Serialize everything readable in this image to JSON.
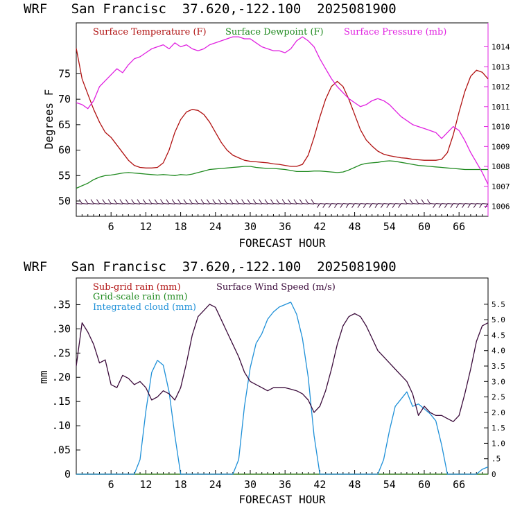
{
  "colors": {
    "temperature": "#b01010",
    "dewpoint": "#1f8a1f",
    "pressure": "#e020e0",
    "wind": "#3a0a3a",
    "cloud": "#1e90d8",
    "subgrid": "#b01010",
    "gridscale": "#1f8a1f"
  },
  "chart_data": [
    {
      "type": "line",
      "title": "WRF   San Francisc  37.620,-122.100  2025081900",
      "xlabel": "FORECAST HOUR",
      "ylabel": "Degrees F",
      "xlim": [
        0,
        71
      ],
      "ylim": [
        47,
        85
      ],
      "y2lim": [
        1005.5,
        1015.2
      ],
      "x_ticks": [
        6,
        12,
        18,
        24,
        30,
        36,
        42,
        48,
        54,
        60,
        66
      ],
      "y_ticks": [
        50,
        55,
        60,
        65,
        70,
        75
      ],
      "y2_ticks": [
        1006,
        1007,
        1008,
        1009,
        1010,
        1011,
        1012,
        1013,
        1014
      ],
      "legend": [
        "Surface Temperature (F)",
        "Surface Dewpoint (F)",
        "Surface Pressure (mb)"
      ],
      "series": [
        {
          "name": "Surface Temperature (F)",
          "axis": "left",
          "x": [
            0,
            1,
            2,
            3,
            4,
            5,
            6,
            7,
            8,
            9,
            10,
            11,
            12,
            13,
            14,
            15,
            16,
            17,
            18,
            19,
            20,
            21,
            22,
            23,
            24,
            25,
            26,
            27,
            28,
            29,
            30,
            31,
            32,
            33,
            34,
            35,
            36,
            37,
            38,
            39,
            40,
            41,
            42,
            43,
            44,
            45,
            46,
            47,
            48,
            49,
            50,
            51,
            52,
            53,
            54,
            55,
            56,
            57,
            58,
            59,
            60,
            61,
            62,
            63,
            64,
            65,
            66,
            67,
            68,
            69,
            70,
            71
          ],
          "values": [
            80,
            74,
            71,
            68,
            65.5,
            63.5,
            62.5,
            61,
            59.5,
            58,
            57,
            56.6,
            56.5,
            56.5,
            56.6,
            57.5,
            60,
            63.5,
            66,
            67.5,
            68,
            67.8,
            67,
            65.5,
            63.5,
            61.5,
            60,
            59,
            58.5,
            58,
            57.8,
            57.7,
            57.6,
            57.5,
            57.3,
            57.2,
            57,
            56.8,
            56.8,
            57.2,
            59,
            62.5,
            66.5,
            70,
            72.5,
            73.5,
            72.5,
            70,
            67,
            64,
            62,
            60.8,
            59.8,
            59.2,
            58.9,
            58.7,
            58.5,
            58.4,
            58.2,
            58.1,
            58,
            58,
            58,
            58.2,
            59.5,
            63,
            67.5,
            71.5,
            74.5,
            75.7,
            75.3,
            74
          ]
        },
        {
          "name": "Surface Dewpoint (F)",
          "axis": "left",
          "x": [
            0,
            1,
            2,
            3,
            4,
            5,
            6,
            7,
            8,
            9,
            10,
            11,
            12,
            13,
            14,
            15,
            16,
            17,
            18,
            19,
            20,
            21,
            22,
            23,
            24,
            25,
            26,
            27,
            28,
            29,
            30,
            31,
            32,
            33,
            34,
            35,
            36,
            37,
            38,
            39,
            40,
            41,
            42,
            43,
            44,
            45,
            46,
            47,
            48,
            49,
            50,
            51,
            52,
            53,
            54,
            55,
            56,
            57,
            58,
            59,
            60,
            61,
            62,
            63,
            64,
            65,
            66,
            67,
            68,
            69,
            70,
            71
          ],
          "values": [
            52.5,
            53,
            53.5,
            54.2,
            54.7,
            55,
            55.1,
            55.3,
            55.5,
            55.6,
            55.5,
            55.4,
            55.3,
            55.2,
            55.1,
            55.2,
            55.1,
            55.0,
            55.2,
            55.1,
            55.3,
            55.6,
            55.9,
            56.2,
            56.3,
            56.4,
            56.5,
            56.6,
            56.7,
            56.8,
            56.8,
            56.6,
            56.5,
            56.4,
            56.4,
            56.3,
            56.2,
            56.0,
            55.8,
            55.8,
            55.8,
            55.9,
            55.9,
            55.8,
            55.7,
            55.6,
            55.7,
            56.1,
            56.6,
            57.1,
            57.4,
            57.5,
            57.6,
            57.8,
            57.9,
            57.8,
            57.6,
            57.4,
            57.2,
            57.0,
            56.9,
            56.8,
            56.7,
            56.6,
            56.5,
            56.4,
            56.3,
            56.2,
            56.2,
            56.2,
            56.2,
            56.2
          ]
        },
        {
          "name": "Surface Pressure (mb)",
          "axis": "right",
          "x": [
            0,
            1,
            2,
            3,
            4,
            5,
            6,
            7,
            8,
            9,
            10,
            11,
            12,
            13,
            14,
            15,
            16,
            17,
            18,
            19,
            20,
            21,
            22,
            23,
            24,
            25,
            26,
            27,
            28,
            29,
            30,
            31,
            32,
            33,
            34,
            35,
            36,
            37,
            38,
            39,
            40,
            41,
            42,
            43,
            44,
            45,
            46,
            47,
            48,
            49,
            50,
            51,
            52,
            53,
            54,
            55,
            56,
            57,
            58,
            59,
            60,
            61,
            62,
            63,
            64,
            65,
            66,
            67,
            68,
            69,
            70,
            71
          ],
          "values": [
            1011.2,
            1011.1,
            1010.9,
            1011.3,
            1012.0,
            1012.3,
            1012.6,
            1012.9,
            1012.7,
            1013.1,
            1013.4,
            1013.5,
            1013.7,
            1013.9,
            1014.0,
            1014.1,
            1013.9,
            1014.2,
            1014.0,
            1014.1,
            1013.9,
            1013.8,
            1013.9,
            1014.1,
            1014.2,
            1014.3,
            1014.4,
            1014.5,
            1014.5,
            1014.4,
            1014.4,
            1014.2,
            1014.0,
            1013.9,
            1013.8,
            1013.8,
            1013.7,
            1013.9,
            1014.3,
            1014.5,
            1014.3,
            1014.0,
            1013.4,
            1012.9,
            1012.4,
            1012.0,
            1011.7,
            1011.4,
            1011.2,
            1011.0,
            1011.1,
            1011.3,
            1011.4,
            1011.3,
            1011.1,
            1010.8,
            1010.5,
            1010.3,
            1010.1,
            1010.0,
            1009.9,
            1009.8,
            1009.7,
            1009.4,
            1009.7,
            1010.0,
            1009.8,
            1009.3,
            1008.7,
            1008.2,
            1007.7,
            1007.1
          ]
        }
      ],
      "wind_barb_level": 49.5
    },
    {
      "type": "line",
      "title": "WRF   San Francisc  37.620,-122.100  2025081900",
      "xlabel": "FORECAST HOUR",
      "ylabel": "mm",
      "xlim": [
        0,
        71
      ],
      "ylim": [
        0,
        0.405
      ],
      "y2lim": [
        0,
        6.35
      ],
      "x_ticks": [
        6,
        12,
        18,
        24,
        30,
        36,
        42,
        48,
        54,
        60,
        66
      ],
      "y_ticks": [
        0,
        0.05,
        0.1,
        0.15,
        0.2,
        0.25,
        0.3,
        0.35
      ],
      "y_tick_labels": [
        "0",
        ".05",
        ".10",
        ".15",
        ".20",
        ".25",
        ".30",
        ".35"
      ],
      "y2_ticks": [
        0,
        0.5,
        1.0,
        1.5,
        2.0,
        2.5,
        3.0,
        3.5,
        4.0,
        4.5,
        5.0,
        5.5
      ],
      "y2_tick_labels": [
        "0",
        ".5",
        "1.0",
        "1.5",
        "2.0",
        "2.5",
        "3.0",
        "3.5",
        "4.0",
        "4.5",
        "5.0",
        "5.5"
      ],
      "legend": [
        "Sub-grid rain (mm)",
        "Grid-scale rain (mm)",
        "Integrated cloud (mm)",
        "Surface Wind Speed (m/s)"
      ],
      "series": [
        {
          "name": "Sub-grid rain (mm)",
          "axis": "left",
          "x": [
            0,
            71
          ],
          "values": [
            0,
            0
          ]
        },
        {
          "name": "Grid-scale rain (mm)",
          "axis": "left",
          "x": [
            0,
            71
          ],
          "values": [
            0,
            0
          ]
        },
        {
          "name": "Integrated cloud (mm)",
          "axis": "left",
          "x": [
            0,
            1,
            2,
            3,
            4,
            5,
            6,
            7,
            8,
            9,
            10,
            11,
            12,
            13,
            14,
            15,
            16,
            17,
            18,
            19,
            20,
            21,
            22,
            23,
            24,
            25,
            26,
            27,
            28,
            29,
            30,
            31,
            32,
            33,
            34,
            35,
            36,
            37,
            38,
            39,
            40,
            41,
            42,
            43,
            44,
            45,
            46,
            47,
            48,
            49,
            50,
            51,
            52,
            53,
            54,
            55,
            56,
            57,
            58,
            59,
            60,
            61,
            62,
            63,
            64,
            65,
            66,
            67,
            68,
            69,
            70,
            71
          ],
          "values": [
            0,
            0,
            0,
            0,
            0,
            0,
            0,
            0,
            0,
            0,
            0,
            0.03,
            0.13,
            0.21,
            0.235,
            0.225,
            0.17,
            0.08,
            0,
            0,
            0,
            0,
            0,
            0,
            0,
            0,
            0,
            0,
            0.03,
            0.14,
            0.22,
            0.27,
            0.29,
            0.32,
            0.335,
            0.345,
            0.35,
            0.355,
            0.33,
            0.28,
            0.2,
            0.08,
            0,
            0,
            0,
            0,
            0,
            0,
            0,
            0,
            0,
            0,
            0,
            0.03,
            0.09,
            0.14,
            0.155,
            0.17,
            0.14,
            0.145,
            0.135,
            0.125,
            0.11,
            0.06,
            0,
            0,
            0,
            0,
            0,
            0,
            0.01,
            0.015
          ]
        },
        {
          "name": "Surface Wind Speed (m/s)",
          "axis": "right",
          "x": [
            0,
            1,
            2,
            3,
            4,
            5,
            6,
            7,
            8,
            9,
            10,
            11,
            12,
            13,
            14,
            15,
            16,
            17,
            18,
            19,
            20,
            21,
            22,
            23,
            24,
            25,
            26,
            27,
            28,
            29,
            30,
            31,
            32,
            33,
            34,
            35,
            36,
            37,
            38,
            39,
            40,
            41,
            42,
            43,
            44,
            45,
            46,
            47,
            48,
            49,
            50,
            51,
            52,
            53,
            54,
            55,
            56,
            57,
            58,
            59,
            60,
            61,
            62,
            63,
            64,
            65,
            66,
            67,
            68,
            69,
            70,
            71
          ],
          "values": [
            3.5,
            4.9,
            4.6,
            4.2,
            3.6,
            3.7,
            2.9,
            2.8,
            3.2,
            3.1,
            2.9,
            3.0,
            2.8,
            2.4,
            2.5,
            2.7,
            2.6,
            2.4,
            2.8,
            3.6,
            4.5,
            5.1,
            5.3,
            5.5,
            5.4,
            5.0,
            4.6,
            4.2,
            3.8,
            3.3,
            3.0,
            2.9,
            2.8,
            2.7,
            2.8,
            2.8,
            2.8,
            2.75,
            2.7,
            2.6,
            2.4,
            2.0,
            2.2,
            2.7,
            3.4,
            4.2,
            4.8,
            5.1,
            5.2,
            5.1,
            4.8,
            4.4,
            4.0,
            3.8,
            3.6,
            3.4,
            3.2,
            3.0,
            2.6,
            1.9,
            2.2,
            2.0,
            1.9,
            1.9,
            1.8,
            1.7,
            1.9,
            2.6,
            3.4,
            4.3,
            4.8,
            4.9
          ]
        }
      ]
    }
  ]
}
